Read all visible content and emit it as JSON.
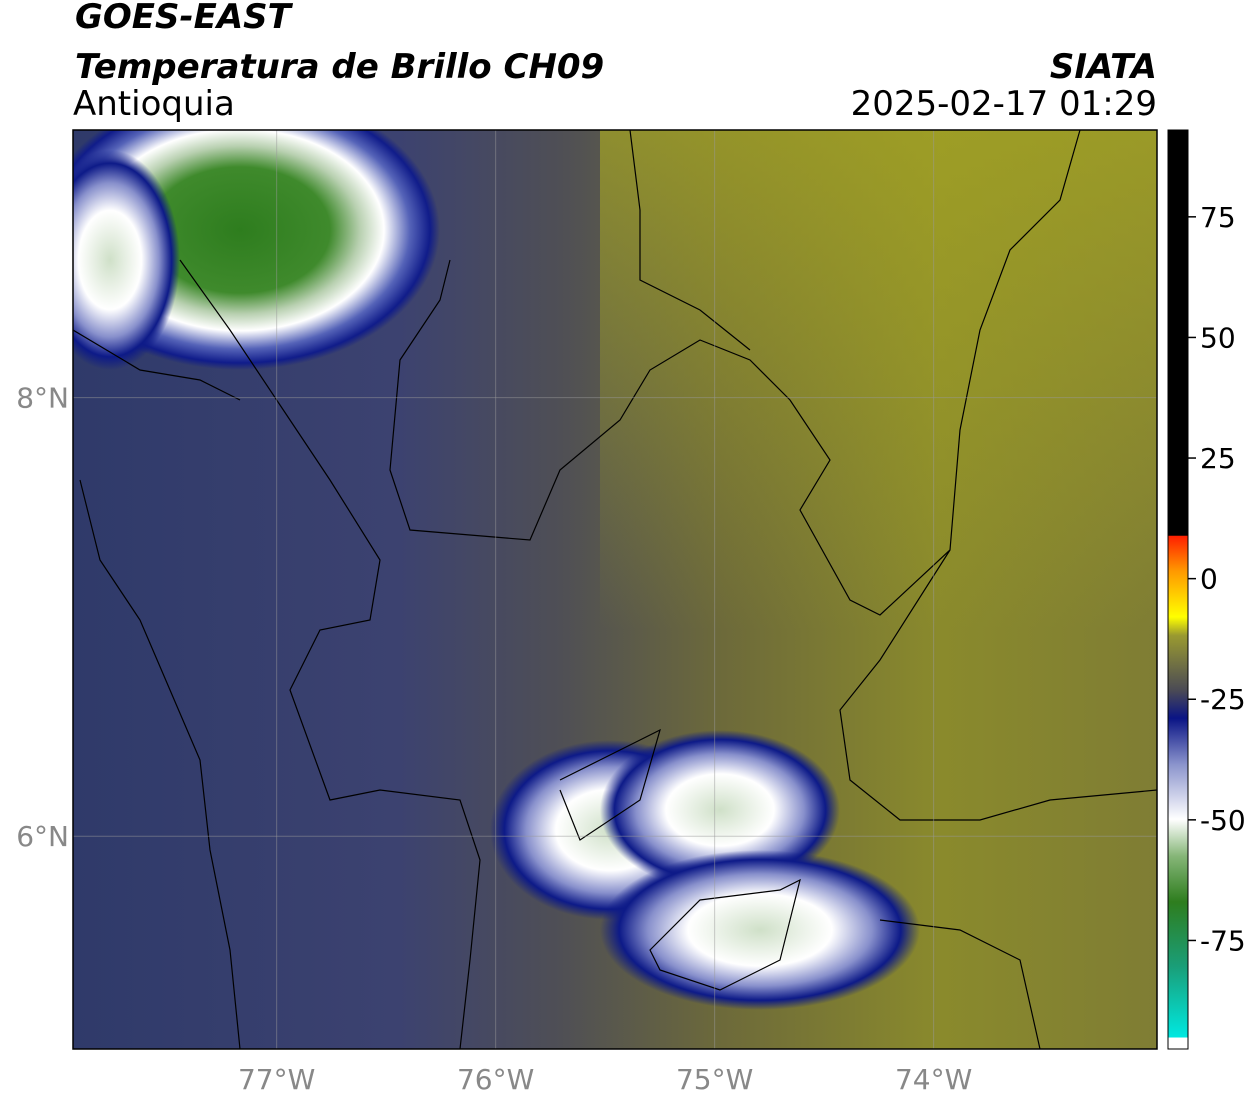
{
  "header": {
    "title": "GOES-EAST",
    "subtitle": "Temperatura de Brillo CH09",
    "region": "Antioquia",
    "source": "SIATA",
    "datetime": "2025-02-17 01:29"
  },
  "map": {
    "xlim": [
      -77.93,
      -72.98
    ],
    "ylim": [
      5.03,
      9.22
    ],
    "xticks": [
      {
        "value": -77,
        "label": "77°W"
      },
      {
        "value": -76,
        "label": "76°W"
      },
      {
        "value": -75,
        "label": "75°W"
      },
      {
        "value": -74,
        "label": "74°W"
      }
    ],
    "yticks": [
      {
        "value": 8,
        "label": "8°N"
      },
      {
        "value": 6,
        "label": "6°N"
      }
    ]
  },
  "colorbar": {
    "lim": [
      -97.5,
      93
    ],
    "ticks": [
      75,
      50,
      25,
      0,
      -25,
      -50,
      -75
    ]
  }
}
